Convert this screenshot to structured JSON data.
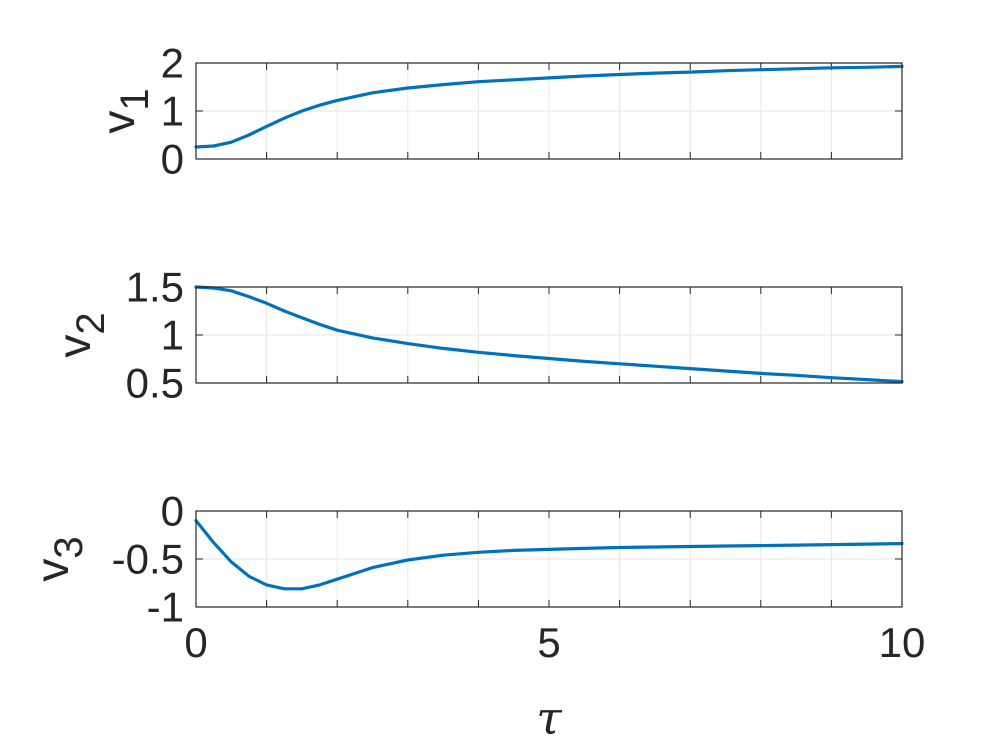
{
  "chart_data": [
    {
      "type": "line",
      "ylabel": "v",
      "ylabel_sub": "1",
      "xlim": [
        0,
        10
      ],
      "ylim": [
        0,
        2
      ],
      "xticks": [
        0,
        1,
        2,
        3,
        4,
        5,
        6,
        7,
        8,
        9,
        10
      ],
      "xtick_labels": [
        "",
        "",
        "",
        "",
        "",
        "",
        "",
        "",
        "",
        "",
        ""
      ],
      "yticks": [
        0,
        1,
        2
      ],
      "ytick_labels": [
        "0",
        "1",
        "2"
      ],
      "grid": true,
      "color": "#0072BD",
      "series": [
        {
          "x": [
            0,
            0.25,
            0.5,
            0.75,
            1,
            1.25,
            1.5,
            1.75,
            2,
            2.5,
            3,
            3.5,
            4,
            4.5,
            5,
            5.5,
            6,
            6.5,
            7,
            7.5,
            8,
            8.5,
            9,
            9.5,
            10
          ],
          "y": [
            0.25,
            0.27,
            0.35,
            0.5,
            0.68,
            0.85,
            1.0,
            1.12,
            1.22,
            1.38,
            1.48,
            1.55,
            1.61,
            1.65,
            1.69,
            1.73,
            1.76,
            1.79,
            1.81,
            1.84,
            1.86,
            1.88,
            1.9,
            1.91,
            1.93
          ]
        }
      ]
    },
    {
      "type": "line",
      "ylabel": "v",
      "ylabel_sub": "2",
      "xlim": [
        0,
        10
      ],
      "ylim": [
        0.5,
        1.5
      ],
      "xticks": [
        0,
        1,
        2,
        3,
        4,
        5,
        6,
        7,
        8,
        9,
        10
      ],
      "xtick_labels": [
        "",
        "",
        "",
        "",
        "",
        "",
        "",
        "",
        "",
        "",
        ""
      ],
      "yticks": [
        0.5,
        1,
        1.5
      ],
      "ytick_labels": [
        "0.5",
        "1",
        "1.5"
      ],
      "grid": true,
      "color": "#0072BD",
      "series": [
        {
          "x": [
            0,
            0.25,
            0.5,
            0.75,
            1,
            1.25,
            1.5,
            1.75,
            2,
            2.5,
            3,
            3.5,
            4,
            4.5,
            5,
            5.5,
            6,
            6.5,
            7,
            7.5,
            8,
            8.5,
            9,
            9.5,
            10
          ],
          "y": [
            1.5,
            1.49,
            1.46,
            1.4,
            1.33,
            1.25,
            1.18,
            1.11,
            1.05,
            0.97,
            0.91,
            0.86,
            0.82,
            0.785,
            0.755,
            0.725,
            0.7,
            0.675,
            0.65,
            0.625,
            0.6,
            0.58,
            0.555,
            0.535,
            0.515
          ]
        }
      ]
    },
    {
      "type": "line",
      "ylabel": "v",
      "ylabel_sub": "3",
      "xlabel": "τ",
      "xlim": [
        0,
        10
      ],
      "ylim": [
        -1,
        0
      ],
      "xticks": [
        0,
        1,
        2,
        3,
        4,
        5,
        6,
        7,
        8,
        9,
        10
      ],
      "xtick_labels": [
        "0",
        "",
        "",
        "",
        "",
        "5",
        "",
        "",
        "",
        "",
        "10"
      ],
      "yticks": [
        -1,
        -0.5,
        0
      ],
      "ytick_labels": [
        "-1",
        "-0.5",
        "0"
      ],
      "grid": true,
      "color": "#0072BD",
      "series": [
        {
          "x": [
            0,
            0.25,
            0.5,
            0.75,
            1,
            1.25,
            1.5,
            1.75,
            2,
            2.25,
            2.5,
            3,
            3.5,
            4,
            4.5,
            5,
            5.5,
            6,
            6.5,
            7,
            7.5,
            8,
            8.5,
            9,
            9.5,
            10
          ],
          "y": [
            -0.1,
            -0.33,
            -0.53,
            -0.68,
            -0.77,
            -0.81,
            -0.81,
            -0.77,
            -0.71,
            -0.65,
            -0.59,
            -0.51,
            -0.46,
            -0.43,
            -0.41,
            -0.4,
            -0.39,
            -0.38,
            -0.375,
            -0.37,
            -0.365,
            -0.36,
            -0.355,
            -0.35,
            -0.345,
            -0.34
          ]
        }
      ]
    }
  ]
}
